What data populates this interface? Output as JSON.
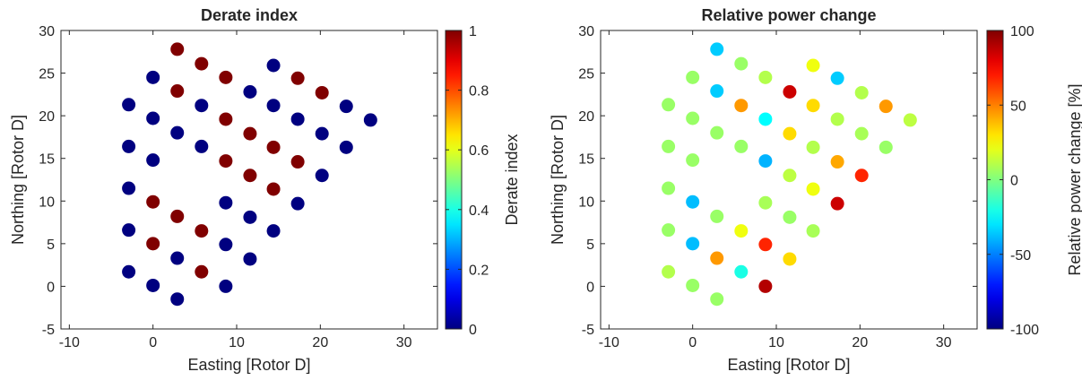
{
  "chart_data": [
    {
      "type": "scatter",
      "title": "Derate index",
      "xlabel": "Easting [Rotor D]",
      "ylabel": "Northing [Rotor D]",
      "xlim": [
        -11,
        34
      ],
      "ylim": [
        -5,
        30
      ],
      "xticks": [
        "-10",
        "0",
        "10",
        "20",
        "30"
      ],
      "yticks": [
        "-5",
        "0",
        "5",
        "10",
        "15",
        "20",
        "25",
        "30"
      ],
      "grid": false,
      "colorbar": {
        "label": "Derate index",
        "range": [
          0,
          1
        ],
        "ticks": [
          "0",
          "0.2",
          "0.4",
          "0.6",
          "0.8",
          "1"
        ],
        "colormap": "jet"
      },
      "points": [
        {
          "x": 2.9,
          "y": 27.8,
          "c": 1
        },
        {
          "x": 0.0,
          "y": 24.5,
          "c": 0
        },
        {
          "x": 5.8,
          "y": 26.1,
          "c": 1
        },
        {
          "x": 2.9,
          "y": 22.9,
          "c": 1
        },
        {
          "x": 8.7,
          "y": 24.5,
          "c": 1
        },
        {
          "x": 14.4,
          "y": 25.9,
          "c": 0
        },
        {
          "x": 11.6,
          "y": 22.8,
          "c": 0
        },
        {
          "x": 17.3,
          "y": 24.4,
          "c": 1
        },
        {
          "x": 20.2,
          "y": 22.7,
          "c": 1
        },
        {
          "x": -2.9,
          "y": 21.3,
          "c": 0
        },
        {
          "x": 0.0,
          "y": 19.7,
          "c": 0
        },
        {
          "x": 5.8,
          "y": 21.2,
          "c": 0
        },
        {
          "x": 2.9,
          "y": 18.0,
          "c": 0
        },
        {
          "x": 8.7,
          "y": 19.6,
          "c": 1
        },
        {
          "x": 14.4,
          "y": 21.2,
          "c": 0
        },
        {
          "x": 11.6,
          "y": 17.9,
          "c": 1
        },
        {
          "x": 17.3,
          "y": 19.6,
          "c": 0
        },
        {
          "x": 23.1,
          "y": 21.1,
          "c": 0
        },
        {
          "x": 26.0,
          "y": 19.5,
          "c": 0
        },
        {
          "x": 20.2,
          "y": 17.9,
          "c": 0
        },
        {
          "x": -2.9,
          "y": 16.4,
          "c": 0
        },
        {
          "x": 0.0,
          "y": 14.8,
          "c": 0
        },
        {
          "x": 5.8,
          "y": 16.4,
          "c": 0
        },
        {
          "x": 8.7,
          "y": 14.7,
          "c": 1
        },
        {
          "x": 14.4,
          "y": 16.3,
          "c": 1
        },
        {
          "x": 11.6,
          "y": 13.0,
          "c": 1
        },
        {
          "x": 17.3,
          "y": 14.6,
          "c": 1
        },
        {
          "x": 23.1,
          "y": 16.3,
          "c": 0
        },
        {
          "x": 20.2,
          "y": 13.0,
          "c": 0
        },
        {
          "x": -2.9,
          "y": 11.5,
          "c": 0
        },
        {
          "x": 0.0,
          "y": 9.9,
          "c": 1
        },
        {
          "x": 2.9,
          "y": 8.2,
          "c": 1
        },
        {
          "x": 8.7,
          "y": 9.8,
          "c": 0
        },
        {
          "x": 14.4,
          "y": 11.4,
          "c": 1
        },
        {
          "x": 11.6,
          "y": 8.1,
          "c": 0
        },
        {
          "x": 17.3,
          "y": 9.7,
          "c": 0
        },
        {
          "x": -2.9,
          "y": 6.6,
          "c": 0
        },
        {
          "x": 0.0,
          "y": 5.0,
          "c": 1
        },
        {
          "x": 5.8,
          "y": 6.5,
          "c": 1
        },
        {
          "x": 2.9,
          "y": 3.3,
          "c": 0
        },
        {
          "x": 8.7,
          "y": 4.9,
          "c": 0
        },
        {
          "x": 14.4,
          "y": 6.5,
          "c": 0
        },
        {
          "x": 11.6,
          "y": 3.2,
          "c": 0
        },
        {
          "x": -2.9,
          "y": 1.7,
          "c": 0
        },
        {
          "x": 0.0,
          "y": 0.1,
          "c": 0
        },
        {
          "x": 5.8,
          "y": 1.7,
          "c": 1
        },
        {
          "x": 2.9,
          "y": -1.5,
          "c": 0
        },
        {
          "x": 8.7,
          "y": 0.0,
          "c": 0
        }
      ]
    },
    {
      "type": "scatter",
      "title": "Relative power change",
      "xlabel": "Easting [Rotor D]",
      "ylabel": "Northing [Rotor D]",
      "xlim": [
        -11,
        34
      ],
      "ylim": [
        -5,
        30
      ],
      "xticks": [
        "-10",
        "0",
        "10",
        "20",
        "30"
      ],
      "yticks": [
        "-5",
        "0",
        "5",
        "10",
        "15",
        "20",
        "25",
        "30"
      ],
      "grid": false,
      "colorbar": {
        "label": "Relative power change [%]",
        "range": [
          -100,
          100
        ],
        "ticks": [
          "-100",
          "-50",
          "0",
          "50",
          "100"
        ],
        "colormap": "jet"
      },
      "points": [
        {
          "x": 2.9,
          "y": 27.8,
          "c": -35
        },
        {
          "x": 0.0,
          "y": 24.5,
          "c": 5
        },
        {
          "x": 5.8,
          "y": 26.1,
          "c": 5
        },
        {
          "x": 2.9,
          "y": 22.9,
          "c": -35
        },
        {
          "x": 8.7,
          "y": 24.5,
          "c": 10
        },
        {
          "x": 14.4,
          "y": 25.9,
          "c": 22
        },
        {
          "x": 11.6,
          "y": 22.8,
          "c": 85
        },
        {
          "x": 17.3,
          "y": 24.4,
          "c": -35
        },
        {
          "x": 20.2,
          "y": 22.7,
          "c": 10
        },
        {
          "x": -2.9,
          "y": 21.3,
          "c": 5
        },
        {
          "x": 0.0,
          "y": 19.7,
          "c": 5
        },
        {
          "x": 5.8,
          "y": 21.2,
          "c": 45
        },
        {
          "x": 2.9,
          "y": 18.0,
          "c": 5
        },
        {
          "x": 8.7,
          "y": 19.6,
          "c": -25
        },
        {
          "x": 14.4,
          "y": 21.2,
          "c": 32
        },
        {
          "x": 11.6,
          "y": 17.9,
          "c": 32
        },
        {
          "x": 17.3,
          "y": 19.6,
          "c": 10
        },
        {
          "x": 23.1,
          "y": 21.1,
          "c": 45
        },
        {
          "x": 26.0,
          "y": 19.5,
          "c": 12
        },
        {
          "x": 20.2,
          "y": 17.9,
          "c": 8
        },
        {
          "x": -2.9,
          "y": 16.4,
          "c": 5
        },
        {
          "x": 0.0,
          "y": 14.8,
          "c": 5
        },
        {
          "x": 5.8,
          "y": 16.4,
          "c": 5
        },
        {
          "x": 8.7,
          "y": 14.7,
          "c": -40
        },
        {
          "x": 14.4,
          "y": 16.3,
          "c": 10
        },
        {
          "x": 11.6,
          "y": 13.0,
          "c": 12
        },
        {
          "x": 17.3,
          "y": 14.6,
          "c": 42
        },
        {
          "x": 23.1,
          "y": 16.3,
          "c": 5
        },
        {
          "x": 20.2,
          "y": 13.0,
          "c": 68
        },
        {
          "x": -2.9,
          "y": 11.5,
          "c": 5
        },
        {
          "x": 0.0,
          "y": 9.9,
          "c": -38
        },
        {
          "x": 2.9,
          "y": 8.2,
          "c": 5
        },
        {
          "x": 8.7,
          "y": 9.8,
          "c": 8
        },
        {
          "x": 14.4,
          "y": 11.4,
          "c": 22
        },
        {
          "x": 11.6,
          "y": 8.1,
          "c": 5
        },
        {
          "x": 17.3,
          "y": 9.7,
          "c": 85
        },
        {
          "x": -2.9,
          "y": 6.6,
          "c": 5
        },
        {
          "x": 0.0,
          "y": 5.0,
          "c": -38
        },
        {
          "x": 5.8,
          "y": 6.5,
          "c": 22
        },
        {
          "x": 2.9,
          "y": 3.3,
          "c": 45
        },
        {
          "x": 8.7,
          "y": 4.9,
          "c": 68
        },
        {
          "x": 14.4,
          "y": 6.5,
          "c": 8
        },
        {
          "x": 11.6,
          "y": 3.2,
          "c": 32
        },
        {
          "x": -2.9,
          "y": 1.7,
          "c": 10
        },
        {
          "x": 0.0,
          "y": 0.1,
          "c": 5
        },
        {
          "x": 5.8,
          "y": 1.7,
          "c": -20
        },
        {
          "x": 2.9,
          "y": -1.5,
          "c": 5
        },
        {
          "x": 8.7,
          "y": 0.0,
          "c": 90
        }
      ]
    }
  ]
}
